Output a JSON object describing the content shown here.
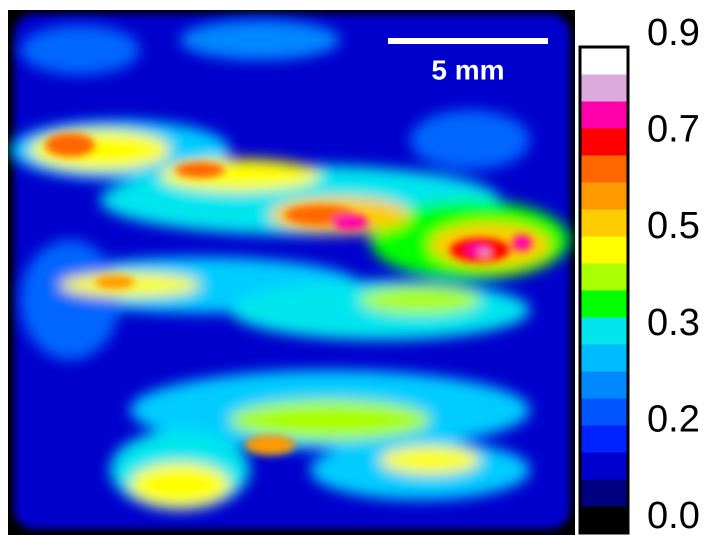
{
  "scale_bar": {
    "label": "5 mm"
  },
  "colorbar": {
    "ticks": [
      {
        "value": 0,
        "label": "0.0"
      },
      0.2,
      0.3,
      0.5,
      0.7,
      0.9
    ],
    "colors": [
      "#000000",
      "#000080",
      "#0000cc",
      "#0022ff",
      "#0055ff",
      "#0088ff",
      "#00bbff",
      "#00e5ee",
      "#00ff00",
      "#aaff00",
      "#ffff00",
      "#ffcc00",
      "#ff9900",
      "#ff6600",
      "#ff0000",
      "#ff00aa",
      "#ddaadd",
      "#ffffff"
    ]
  }
}
